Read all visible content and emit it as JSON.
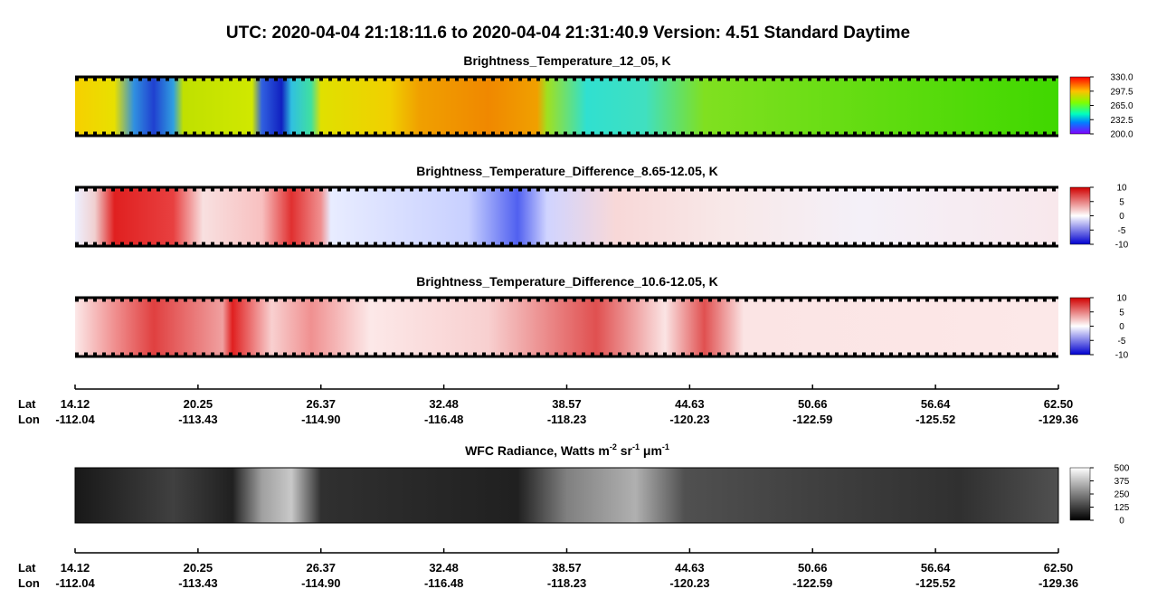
{
  "title": "UTC:  2020-04-04   21:18:11.6  to  2020-04-04   21:31:40.9    Version: 4.51  Standard Daytime",
  "panels": [
    {
      "title": "Brightness_Temperature_12_05, K",
      "colorbar_ticks": [
        "330.0",
        "297.5",
        "265.0",
        "232.5",
        "200.0"
      ]
    },
    {
      "title": "Brightness_Temperature_Difference_8.65-12.05, K",
      "colorbar_ticks": [
        "10",
        "5",
        "0",
        "-5",
        "-10"
      ]
    },
    {
      "title": "Brightness_Temperature_Difference_10.6-12.05, K",
      "colorbar_ticks": [
        "10",
        "5",
        "0",
        "-5",
        "-10"
      ]
    },
    {
      "title_parts": [
        "WFC Radiance, Watts m",
        "-2",
        " sr",
        "-1",
        " μm",
        "-1"
      ],
      "colorbar_ticks": [
        "500",
        "375",
        "250",
        "125",
        "0"
      ]
    }
  ],
  "axes": [
    {
      "lat_name": "Lat",
      "lon_name": "Lon",
      "lat": [
        "14.12",
        "20.25",
        "26.37",
        "32.48",
        "38.57",
        "44.63",
        "50.66",
        "56.64",
        "62.50"
      ],
      "lon": [
        "-112.04",
        "-113.43",
        "-114.90",
        "-116.48",
        "-118.23",
        "-120.23",
        "-122.59",
        "-125.52",
        "-129.36"
      ]
    },
    {
      "lat_name": "Lat",
      "lon_name": "Lon",
      "lat": [
        "14.12",
        "20.25",
        "26.37",
        "32.48",
        "38.57",
        "44.63",
        "50.66",
        "56.64",
        "62.50"
      ],
      "lon": [
        "-112.04",
        "-113.43",
        "-114.90",
        "-116.48",
        "-118.23",
        "-120.23",
        "-122.59",
        "-125.52",
        "-129.36"
      ]
    }
  ]
}
